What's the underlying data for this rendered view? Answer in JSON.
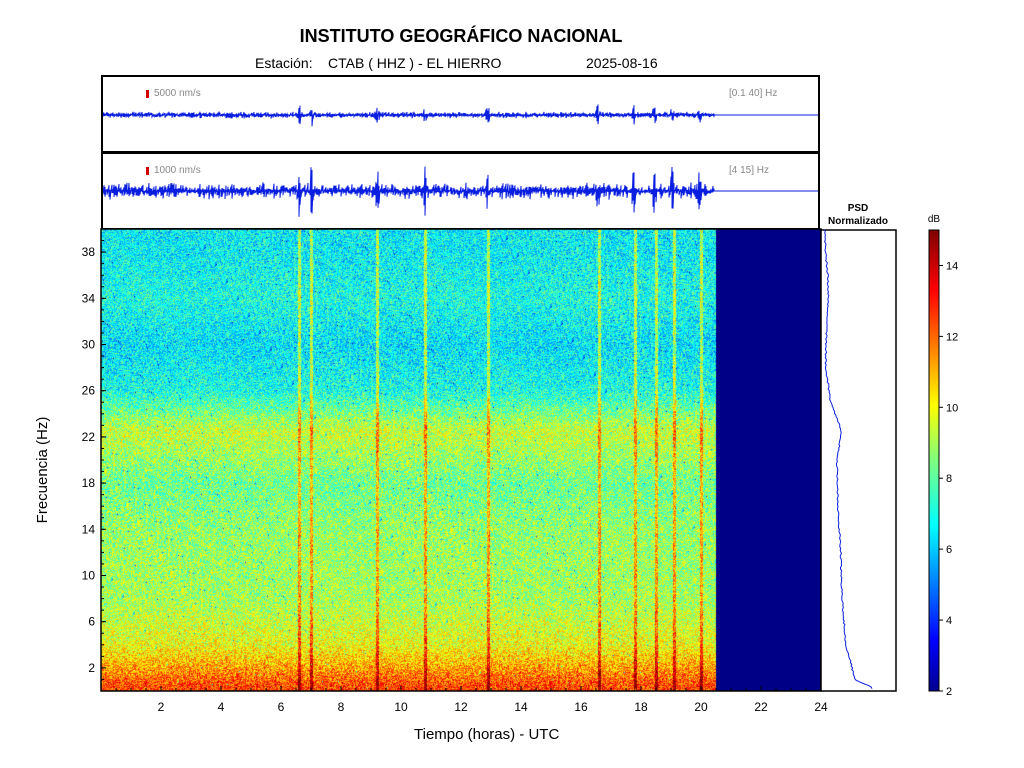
{
  "header": {
    "title": "INSTITUTO GEOGRÁFICO NACIONAL",
    "station_label": "Estación:",
    "station": "CTAB ( HHZ ) - EL HIERRO",
    "date": "2025-08-16"
  },
  "traces": [
    {
      "scale": "5000 nm/s",
      "band": "[0.1 40] Hz"
    },
    {
      "scale": "1000 nm/s",
      "band": "[4 15] Hz"
    }
  ],
  "psd": {
    "title_line1": "PSD",
    "title_line2": "Normalizado"
  },
  "colorbar": {
    "unit": "dB",
    "ticks": [
      "2",
      "4",
      "6",
      "8",
      "10",
      "12",
      "14"
    ],
    "range": [
      2,
      15
    ]
  },
  "chart_data": {
    "type": "heatmap",
    "title": "INSTITUTO GEOGRÁFICO NACIONAL",
    "xlabel": "Tiempo (horas) - UTC",
    "ylabel": "Frecuencia  (Hz)",
    "xlim": [
      0,
      24
    ],
    "ylim": [
      0,
      40
    ],
    "x_ticks": [
      "2",
      "4",
      "6",
      "8",
      "10",
      "12",
      "14",
      "16",
      "18",
      "20",
      "22",
      "24"
    ],
    "y_ticks": [
      "2",
      "6",
      "10",
      "14",
      "18",
      "22",
      "26",
      "30",
      "34",
      "38"
    ],
    "data_end_hour": 20.5,
    "spectral_level_db_by_freq": [
      {
        "hz": 0.5,
        "db": 12.5
      },
      {
        "hz": 2.5,
        "db": 11
      },
      {
        "hz": 4,
        "db": 10
      },
      {
        "hz": 8,
        "db": 9
      },
      {
        "hz": 14,
        "db": 8.8
      },
      {
        "hz": 18,
        "db": 8.3
      },
      {
        "hz": 22.5,
        "db": 9.5
      },
      {
        "hz": 26,
        "db": 7.2
      },
      {
        "hz": 30,
        "db": 6.6
      },
      {
        "hz": 34,
        "db": 7.2
      },
      {
        "hz": 38,
        "db": 6.8
      },
      {
        "hz": 40,
        "db": 6.8
      }
    ],
    "event_hours": [
      6.6,
      7.0,
      9.2,
      10.8,
      12.9,
      16.6,
      17.8,
      18.5,
      19.1,
      20.0
    ],
    "psd_normalized_by_freq": [
      {
        "hz": 0.3,
        "v": 0.7
      },
      {
        "hz": 1,
        "v": 0.45
      },
      {
        "hz": 2.5,
        "v": 0.4
      },
      {
        "hz": 4,
        "v": 0.33
      },
      {
        "hz": 8,
        "v": 0.28
      },
      {
        "hz": 12,
        "v": 0.26
      },
      {
        "hz": 16,
        "v": 0.22
      },
      {
        "hz": 20,
        "v": 0.21
      },
      {
        "hz": 22.5,
        "v": 0.27
      },
      {
        "hz": 25,
        "v": 0.12
      },
      {
        "hz": 28,
        "v": 0.05
      },
      {
        "hz": 31,
        "v": 0.06
      },
      {
        "hz": 34,
        "v": 0.09
      },
      {
        "hz": 36,
        "v": 0.08
      },
      {
        "hz": 38,
        "v": 0.05
      },
      {
        "hz": 40,
        "v": 0.04
      }
    ]
  }
}
